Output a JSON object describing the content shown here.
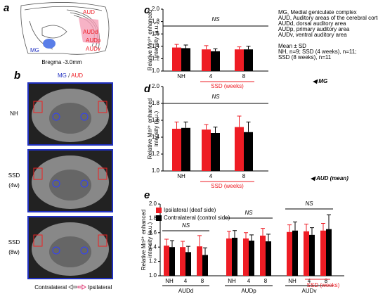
{
  "panel_labels": [
    "a",
    "b",
    "c",
    "d",
    "e"
  ],
  "panel_a": {
    "region_labels": [
      "AUD",
      "AUDd",
      "AUDp",
      "AUDv",
      "MG"
    ],
    "caption": "Bregma -3.0mm"
  },
  "panel_b": {
    "title": [
      "MG",
      "/",
      "AUD"
    ],
    "rows": [
      [
        "NH"
      ],
      [
        "SSD",
        "(4w)"
      ],
      [
        "SSD",
        "(8w)"
      ]
    ],
    "footer": [
      "Contralateral",
      "Ipsilateral"
    ]
  },
  "notes": [
    "MG, Medial geniculate complex",
    "AUD, Auditory areas of the cerebral cortex",
    "AUDd, dorsal auditory area",
    "AUDp, primary auditory area",
    "AUDv, ventral auditory area",
    "Mean ± SD",
    "NH, n=9; SSD (4 weeks), n=11;",
    "SSD (8 weeks), n=11"
  ],
  "chart_data": [
    {
      "type": "bar",
      "ylabel": [
        "Relative Mn²⁺ enhanced",
        "intensity (a.u.)"
      ],
      "categories": [
        "NH",
        "4",
        "8"
      ],
      "group_label": "SSD (weeks)",
      "ylim": [
        1.0,
        2.0
      ],
      "yticks": [
        {
          "value": 1.0,
          "label": "1.0"
        },
        1.2,
        1.4,
        1.6,
        1.8,
        {
          "value": 2.0,
          "label": "2.0"
        }
      ],
      "annotations": [
        "NS"
      ],
      "side_note": "◀ MG",
      "series": [
        {
          "color": "#ee1c24",
          "values": [
            1.38,
            1.35,
            1.35
          ],
          "errors": [
            0.05,
            0.06,
            0.04
          ]
        },
        {
          "color": "#000000",
          "values": [
            1.37,
            1.32,
            1.35
          ],
          "errors": [
            0.05,
            0.04,
            0.05
          ]
        }
      ]
    },
    {
      "type": "bar",
      "ylabel": [
        "Relative Mn²⁺ enhanced",
        "intensity (a.u.)"
      ],
      "categories": [
        "NH",
        "4",
        "8"
      ],
      "group_label": "SSD (weeks)",
      "ylim": [
        1.0,
        2.0
      ],
      "yticks": [
        {
          "value": 1.0,
          "label": "1.0"
        },
        1.2,
        1.4,
        1.6,
        1.8,
        {
          "value": 2.0,
          "label": "2.0"
        }
      ],
      "annotations": [
        "NS"
      ],
      "side_note": "◀ AUD (mean)",
      "series": [
        {
          "color": "#ee1c24",
          "values": [
            1.5,
            1.49,
            1.52
          ],
          "errors": [
            0.08,
            0.06,
            0.13
          ]
        },
        {
          "color": "#000000",
          "values": [
            1.51,
            1.45,
            1.46
          ],
          "errors": [
            0.07,
            0.07,
            0.12
          ]
        }
      ]
    },
    {
      "type": "bar",
      "ylabel": [
        "Relative Mn²⁺ enhanced",
        "intensity (a.u.)"
      ],
      "categories": [
        "NH",
        "4",
        "8",
        "NH",
        "4",
        "8",
        "NH",
        "4",
        "8"
      ],
      "groups": [
        "AUDd",
        "AUDp",
        "AUDv"
      ],
      "group_label": "SSD (weeks)",
      "ylim": [
        1.0,
        2.0
      ],
      "yticks": [
        {
          "value": 1.0,
          "label": "1.0"
        },
        1.2,
        1.4,
        1.6,
        1.8,
        {
          "value": 2.0,
          "label": "2.0"
        }
      ],
      "annotations": [
        "NS",
        "NS",
        "NS"
      ],
      "series": [
        {
          "name": "Ipsilateral (deaf side)",
          "color": "#ee1c24",
          "values": [
            1.42,
            1.4,
            1.41,
            1.52,
            1.52,
            1.56,
            1.61,
            1.62,
            1.63
          ],
          "errors": [
            0.09,
            0.08,
            0.15,
            0.1,
            0.08,
            0.1,
            0.1,
            0.1,
            0.1
          ]
        },
        {
          "name": "Contralateral (control side)",
          "color": "#000000",
          "values": [
            1.4,
            1.33,
            1.29,
            1.53,
            1.49,
            1.48,
            1.63,
            1.57,
            1.65
          ],
          "errors": [
            0.09,
            0.08,
            0.1,
            0.1,
            0.08,
            0.1,
            0.12,
            0.1,
            0.2
          ]
        }
      ]
    }
  ]
}
